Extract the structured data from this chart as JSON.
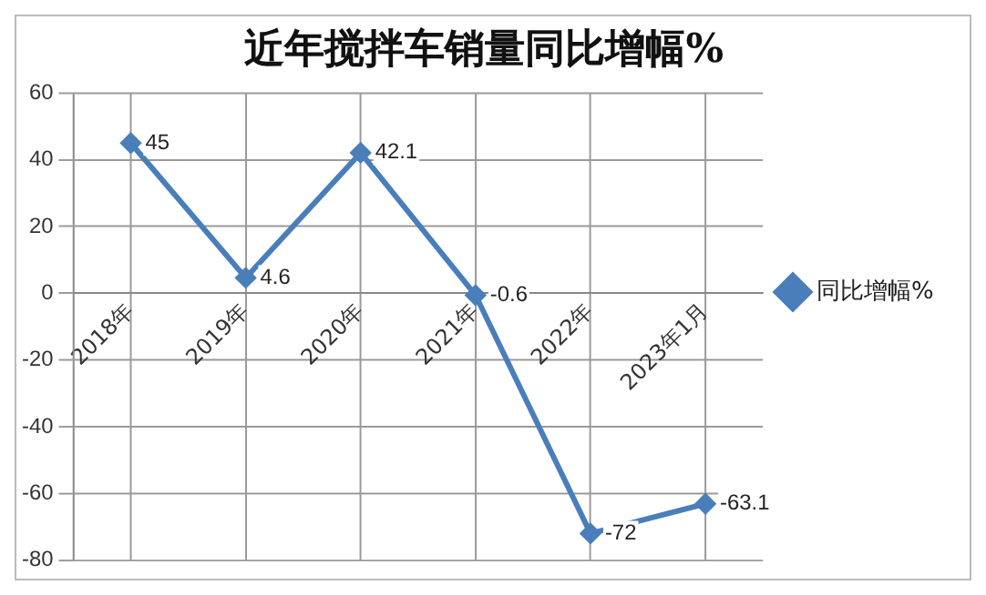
{
  "chart_data": {
    "type": "line",
    "title": "近年搅拌车销量同比增幅%",
    "categories": [
      "2018年",
      "2019年",
      "2020年",
      "2021年",
      "2022年",
      "2023年1月"
    ],
    "series": [
      {
        "name": "同比增幅%",
        "color": "#4a7ebb",
        "values": [
          45,
          4.6,
          42.1,
          -0.6,
          -72,
          -63.1
        ]
      }
    ],
    "ylim": [
      -80,
      60
    ],
    "yticks": [
      -80,
      -60,
      -40,
      -20,
      0,
      20,
      40,
      60
    ],
    "grid": true,
    "legend": "right",
    "marker": "diamond",
    "line_style": "solid",
    "data_labels": true
  }
}
